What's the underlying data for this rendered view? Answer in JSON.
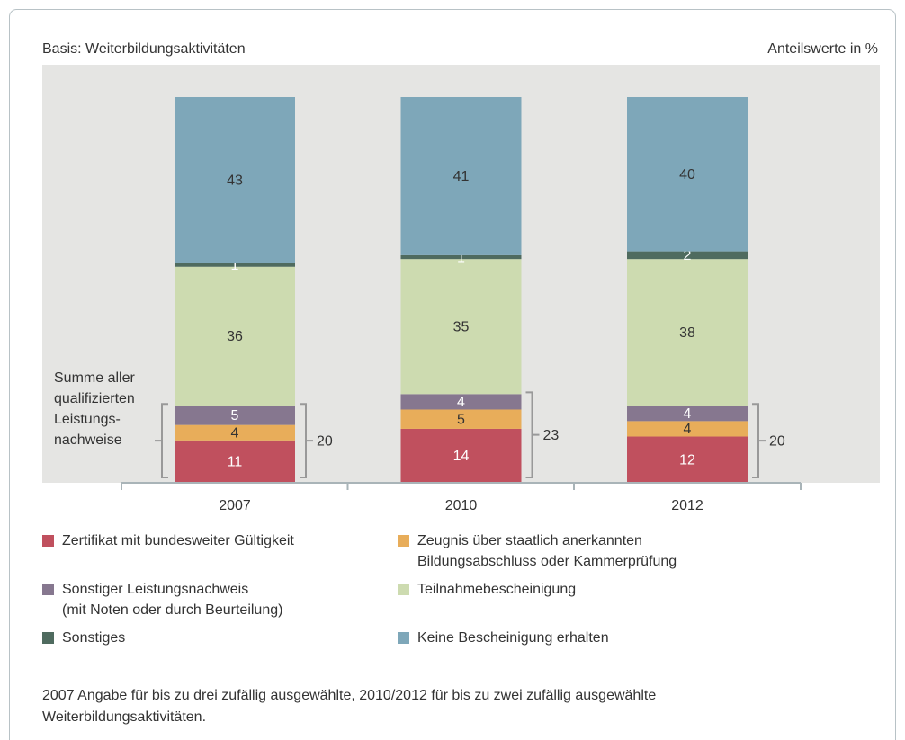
{
  "chart_data": {
    "type": "stacked_bar",
    "subtitle": "Basis: Weiterbildungsaktivitäten",
    "unit_note": "Anteilswerte in %",
    "categories": [
      "2007",
      "2010",
      "2012"
    ],
    "series": [
      {
        "name": "Zertifikat mit bundesweiter Gültigkeit",
        "color": "#c0505e",
        "values": [
          11,
          14,
          12
        ]
      },
      {
        "name": "Zeugnis über staatlich anerkannten\nBildungsabschluss oder Kammerprüfung",
        "color": "#e8ad5a",
        "values": [
          4,
          5,
          4
        ]
      },
      {
        "name": "Sonstiger Leistungsnachweis\n(mit Noten oder durch Beurteilung)",
        "color": "#86778f",
        "values": [
          5,
          4,
          4
        ]
      },
      {
        "name": "Teilnahmebescheinigung",
        "color": "#cddbb0",
        "values": [
          36,
          35,
          38
        ]
      },
      {
        "name": "Sonstiges",
        "color": "#4f6b5f",
        "values": [
          1,
          1,
          2
        ]
      },
      {
        "name": "Keine Bescheinigung erhalten",
        "color": "#7ea7b9",
        "values": [
          43,
          41,
          40
        ]
      }
    ],
    "bracket_label": [
      "Summe aller",
      "qualifizierten",
      "Leistungs-",
      "nachweise"
    ],
    "bracket_totals": [
      20,
      23,
      20
    ],
    "footnote": "2007 Angabe für bis zu drei zufällig ausgewählte, 2010/2012 für bis zu zwei zufällig ausgewählte\nWeiterbildungsaktivitäten."
  }
}
